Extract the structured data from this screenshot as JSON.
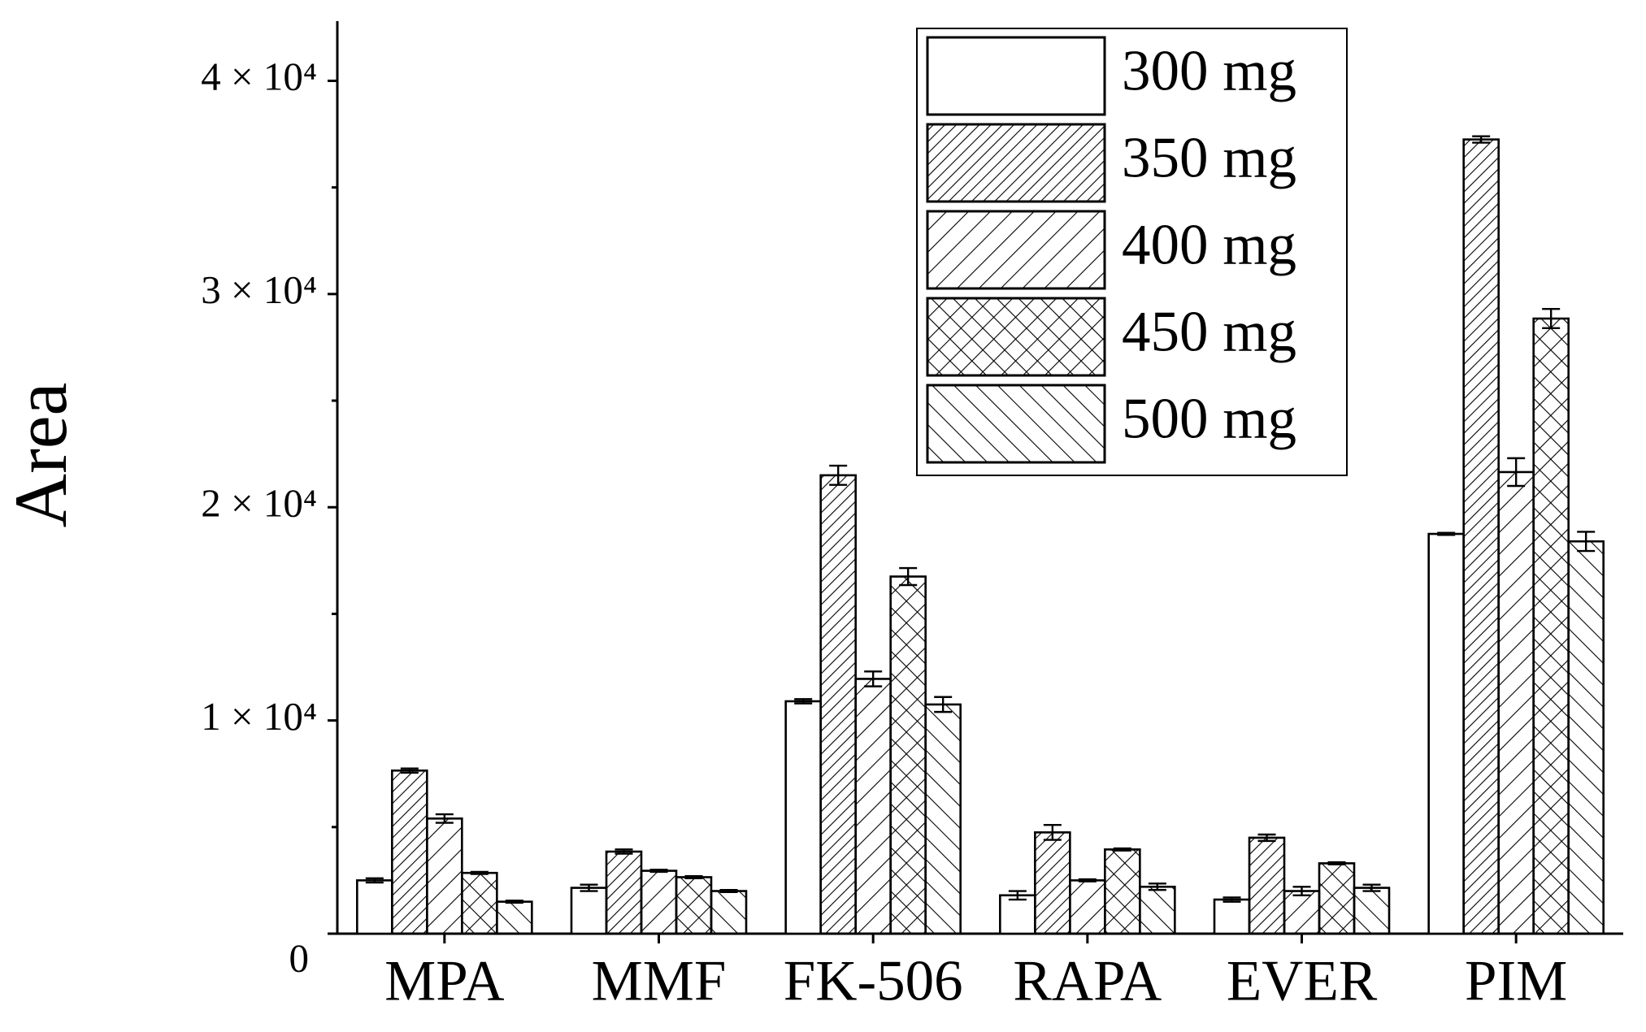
{
  "chart_data": {
    "type": "bar",
    "y_label": "Area",
    "categories": [
      "MPA",
      "MMF",
      "FK-506",
      "RAPA",
      "EVER",
      "PIM"
    ],
    "series": [
      {
        "name": "300 mg",
        "color": "#000000",
        "hatch": "none",
        "values": [
          2500,
          2150,
          10900,
          1800,
          1600,
          18750
        ],
        "errors": [
          100,
          150,
          100,
          200,
          100,
          50
        ]
      },
      {
        "name": "350 mg",
        "color": "#000000",
        "hatch": "dense-forward",
        "values": [
          7650,
          3850,
          21500,
          4750,
          4500,
          37250
        ],
        "errors": [
          100,
          100,
          450,
          350,
          150,
          150
        ]
      },
      {
        "name": "400 mg",
        "color": "#000000",
        "hatch": "forward",
        "values": [
          5400,
          2950,
          11950,
          2500,
          2000,
          21650
        ],
        "errors": [
          200,
          50,
          350,
          50,
          200,
          650
        ]
      },
      {
        "name": "450 mg",
        "color": "#000000",
        "hatch": "cross",
        "values": [
          2850,
          2650,
          16750,
          3950,
          3300,
          28850
        ],
        "errors": [
          50,
          50,
          400,
          50,
          50,
          450
        ]
      },
      {
        "name": "500 mg",
        "color": "#000000",
        "hatch": "backward",
        "values": [
          1500,
          2000,
          10750,
          2200,
          2150,
          18400
        ],
        "errors": [
          50,
          50,
          350,
          150,
          150,
          450
        ]
      }
    ],
    "ylim": [
      0,
      42800
    ],
    "yticks": [
      0,
      {
        "value": 10000,
        "label": "1 × 10⁴"
      },
      {
        "value": 20000,
        "label": "2 × 10⁴"
      },
      {
        "value": 30000,
        "label": "3 × 10⁴"
      },
      {
        "value": 40000,
        "label": "4 × 10⁴"
      }
    ],
    "yticks_minor": [
      5000,
      15000,
      25000,
      35000
    ],
    "grid": false,
    "legend": "upper right"
  }
}
